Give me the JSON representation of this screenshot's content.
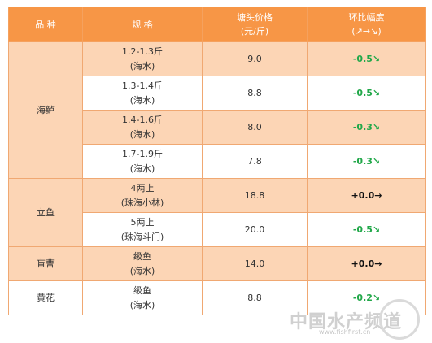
{
  "header": {
    "species": "品 种",
    "spec": "规 格",
    "price_line1": "塘头价格",
    "price_line2": "(元/斤)",
    "change_line1": "环比幅度",
    "change_line2": "(↗→↘)"
  },
  "rows": [
    {
      "species": "海鲈",
      "spec1": "1.2-1.3斤",
      "spec2": "(海水)",
      "price": "9.0",
      "change": "-0.5↘"
    },
    {
      "spec1": "1.3-1.4斤",
      "spec2": "(海水)",
      "price": "8.8",
      "change": "-0.5↘"
    },
    {
      "spec1": "1.4-1.6斤",
      "spec2": "(海水)",
      "price": "8.0",
      "change": "-0.3↘"
    },
    {
      "spec1": "1.7-1.9斤",
      "spec2": "(海水)",
      "price": "7.8",
      "change": "-0.3↘"
    },
    {
      "species": "立鱼",
      "spec1": "4两上",
      "spec2": "(珠海小林)",
      "price": "18.8",
      "change": "+0.0→"
    },
    {
      "spec1": "5两上",
      "spec2": "(珠海斗门)",
      "price": "20.0",
      "change": "-0.5↘"
    },
    {
      "species": "盲曹",
      "spec1": "级鱼",
      "spec2": "(海水)",
      "price": "14.0",
      "change": "+0.0→"
    },
    {
      "species": "黄花",
      "spec1": "级鱼",
      "spec2": "(海水)",
      "price": "8.8",
      "change": "-0.2↘"
    }
  ],
  "watermark": {
    "text": "中国水产频道",
    "sub": "www.fishfirst.cn"
  },
  "colors": {
    "header_bg": "#f79646",
    "shade_bg": "#fcd5b5",
    "down": "#22a84a",
    "flat": "#111111"
  }
}
